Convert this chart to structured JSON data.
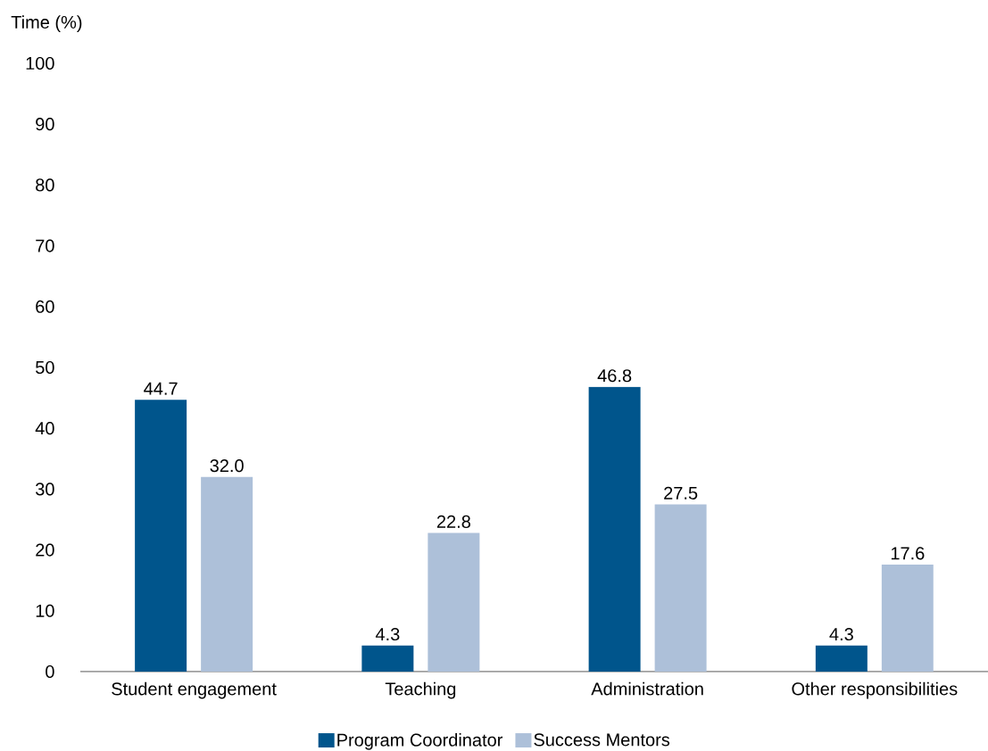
{
  "chart_data": {
    "type": "bar",
    "ylabel": "Time (%)",
    "categories": [
      "Student engagement",
      "Teaching",
      "Administration",
      "Other responsibilities"
    ],
    "series": [
      {
        "name": "Program Coordinator",
        "color": "#00558c",
        "values": [
          44.7,
          4.3,
          46.8,
          4.3
        ],
        "value_labels": [
          "44.7",
          "4.3",
          "46.8",
          "4.3"
        ]
      },
      {
        "name": "Success Mentors",
        "color": "#adc0d9",
        "values": [
          32.0,
          22.8,
          27.5,
          17.6
        ],
        "value_labels": [
          "32.0",
          "22.8",
          "27.5",
          "17.6"
        ]
      }
    ],
    "ylim": [
      0,
      100
    ],
    "yticks": [
      0,
      10,
      20,
      30,
      40,
      50,
      60,
      70,
      80,
      90,
      100
    ],
    "legend": "bottom",
    "grid": false
  }
}
